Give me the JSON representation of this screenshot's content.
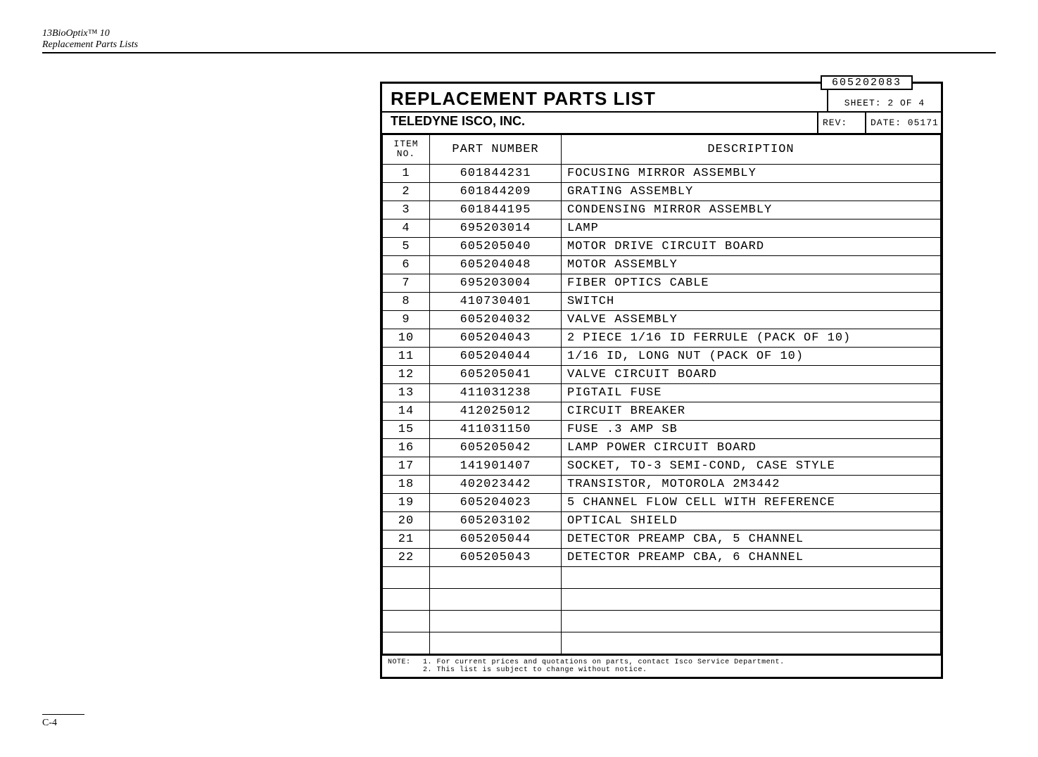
{
  "header": {
    "line1": "13BioOptix™ 10",
    "line2": "Replacement Parts Lists"
  },
  "doc_number": "605202083",
  "title": "REPLACEMENT PARTS LIST",
  "sheet": "SHEET: 2 OF 4",
  "company": "TELEDYNE ISCO, INC.",
  "rev_label": "REV:",
  "date_label": "DATE: 05171",
  "columns": {
    "item": "ITEM\nNO.",
    "partno": "PART NUMBER",
    "desc": "DESCRIPTION"
  },
  "rows": [
    {
      "item": "1",
      "partno": "601844231",
      "desc": "FOCUSING MIRROR ASSEMBLY"
    },
    {
      "item": "2",
      "partno": "601844209",
      "desc": "GRATING ASSEMBLY"
    },
    {
      "item": "3",
      "partno": "601844195",
      "desc": "CONDENSING MIRROR ASSEMBLY"
    },
    {
      "item": "4",
      "partno": "695203014",
      "desc": "LAMP"
    },
    {
      "item": "5",
      "partno": "605205040",
      "desc": "MOTOR DRIVE CIRCUIT BOARD"
    },
    {
      "item": "6",
      "partno": "605204048",
      "desc": "MOTOR ASSEMBLY"
    },
    {
      "item": "7",
      "partno": "695203004",
      "desc": "FIBER OPTICS CABLE"
    },
    {
      "item": "8",
      "partno": "410730401",
      "desc": "SWITCH"
    },
    {
      "item": "9",
      "partno": "605204032",
      "desc": "VALVE ASSEMBLY"
    },
    {
      "item": "10",
      "partno": "605204043",
      "desc": "2 PIECE 1/16 ID FERRULE (PACK OF 10)"
    },
    {
      "item": "11",
      "partno": "605204044",
      "desc": "1/16 ID, LONG NUT (PACK OF 10)"
    },
    {
      "item": "12",
      "partno": "605205041",
      "desc": "VALVE CIRCUIT BOARD"
    },
    {
      "item": "13",
      "partno": "411031238",
      "desc": "PIGTAIL FUSE"
    },
    {
      "item": "14",
      "partno": "412025012",
      "desc": "CIRCUIT BREAKER"
    },
    {
      "item": "15",
      "partno": "411031150",
      "desc": "FUSE .3 AMP SB"
    },
    {
      "item": "16",
      "partno": "605205042",
      "desc": "LAMP POWER CIRCUIT BOARD"
    },
    {
      "item": "17",
      "partno": "141901407",
      "desc": "SOCKET, TO-3 SEMI-COND, CASE STYLE"
    },
    {
      "item": "18",
      "partno": "402023442",
      "desc": "TRANSISTOR, MOTOROLA 2M3442"
    },
    {
      "item": "19",
      "partno": "605204023",
      "desc": "5 CHANNEL FLOW CELL WITH REFERENCE"
    },
    {
      "item": "20",
      "partno": "605203102",
      "desc": "OPTICAL SHIELD"
    },
    {
      "item": "21",
      "partno": "605205044",
      "desc": "DETECTOR PREAMP CBA, 5 CHANNEL"
    },
    {
      "item": "22",
      "partno": "605205043",
      "desc": "DETECTOR PREAMP CBA, 6 CHANNEL"
    }
  ],
  "empty_rows": 4,
  "note": {
    "label": "NOTE:",
    "line1": "1. For current prices and quotations on parts, contact Isco Service Department.",
    "line2": "2. This list is subject to change without notice."
  },
  "footer": "C-4"
}
